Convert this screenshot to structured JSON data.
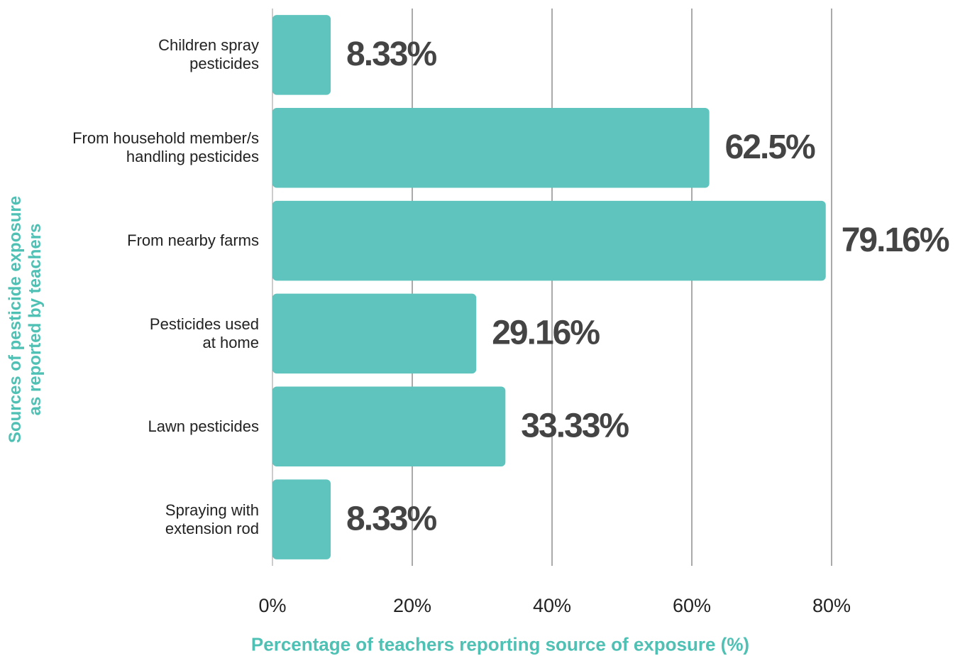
{
  "chart_data": {
    "type": "bar",
    "orientation": "horizontal",
    "categories": [
      "Children spray\npesticides",
      "From household member/s\nhandling pesticides",
      "From nearby farms",
      "Pesticides used\nat home",
      "Lawn pesticides",
      "Spraying with\nextension rod"
    ],
    "values": [
      8.33,
      62.5,
      79.16,
      29.16,
      33.33,
      8.33
    ],
    "value_labels": [
      "8.33%",
      "62.5%",
      "79.16%",
      "29.16%",
      "33.33%",
      "8.33%"
    ],
    "color": "#5ec4bd",
    "xlim": [
      0,
      80
    ],
    "xticks": [
      {
        "value": 0,
        "label": "0%"
      },
      {
        "value": 20,
        "label": "20%"
      },
      {
        "value": 40,
        "label": "40%"
      },
      {
        "value": 60,
        "label": "60%"
      },
      {
        "value": 80,
        "label": "80%"
      }
    ],
    "grid": true,
    "xlabel": "Percentage of teachers reporting source of exposure (%)",
    "ylabel": "Sources of pesticide exposure\nas reported by teachers"
  }
}
